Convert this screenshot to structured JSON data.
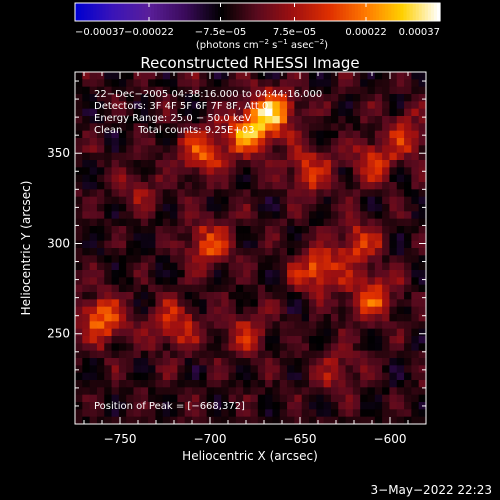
{
  "chart_data": {
    "type": "heatmap",
    "title": "Reconstructed RHESSI Image",
    "xlabel": "Heliocentric X (arcsec)",
    "ylabel": "Heliocentric Y (arcsec)",
    "xlim": [
      -775,
      -580
    ],
    "ylim": [
      200,
      395
    ],
    "x_ticks": [
      -750,
      -700,
      -650,
      -600
    ],
    "x_tick_labels": [
      "−750",
      "−700",
      "−650",
      "−600"
    ],
    "y_ticks": [
      250,
      300,
      350
    ],
    "y_tick_labels": [
      "250",
      "300",
      "350"
    ],
    "colorbar": {
      "range": [
        -0.00037,
        0.00037
      ],
      "ticks": [
        -0.00037,
        -0.00022,
        -7.5e-05,
        7.5e-05,
        0.00022,
        0.00037
      ],
      "tick_labels": [
        "−0.00037",
        "−0.00022",
        "−7.5e−05",
        "7.5e−05",
        "0.00022",
        "0.00037"
      ],
      "unit_main": "(photons cm",
      "unit_exp1": "−2",
      "unit_mid1": " s",
      "unit_exp2": "−1",
      "unit_mid2": " asec",
      "unit_exp3": "−2",
      "unit_end": ")",
      "colors": [
        "#0000d0",
        "#3a14b8",
        "#5a1f9a",
        "#3a0a5a",
        "#000000",
        "#5a0a1e",
        "#a01010",
        "#e03000",
        "#ff7a00",
        "#ffd000",
        "#ffffff"
      ]
    },
    "peak": [
      -668,
      372
    ],
    "hotspots": [
      {
        "x": -666,
        "y": 372,
        "a": 1.0
      },
      {
        "x": -680,
        "y": 360,
        "a": 0.8
      },
      {
        "x": -705,
        "y": 350,
        "a": 0.6
      },
      {
        "x": -645,
        "y": 340,
        "a": 0.55
      },
      {
        "x": -610,
        "y": 345,
        "a": 0.5
      },
      {
        "x": -590,
        "y": 360,
        "a": 0.45
      },
      {
        "x": -700,
        "y": 300,
        "a": 0.6
      },
      {
        "x": -640,
        "y": 285,
        "a": 0.7
      },
      {
        "x": -610,
        "y": 270,
        "a": 0.65
      },
      {
        "x": -618,
        "y": 300,
        "a": 0.5
      },
      {
        "x": -760,
        "y": 258,
        "a": 0.7
      },
      {
        "x": -720,
        "y": 255,
        "a": 0.55
      },
      {
        "x": -680,
        "y": 250,
        "a": 0.4
      },
      {
        "x": -630,
        "y": 230,
        "a": 0.35
      },
      {
        "x": -740,
        "y": 330,
        "a": 0.3
      }
    ],
    "info_lines": [
      "22−Dec−2005 04:38:16.000 to 04:44:16.000",
      "Detectors: 3F 4F 5F 6F 7F 8F, Att 0",
      "Energy Range: 25.0 − 50.0 keV",
      "Clean     Total counts: 9.25E+03"
    ],
    "peak_label": "Position of Peak = [−668,372]"
  },
  "footer": {
    "date": "3−May−2022 22:23"
  }
}
